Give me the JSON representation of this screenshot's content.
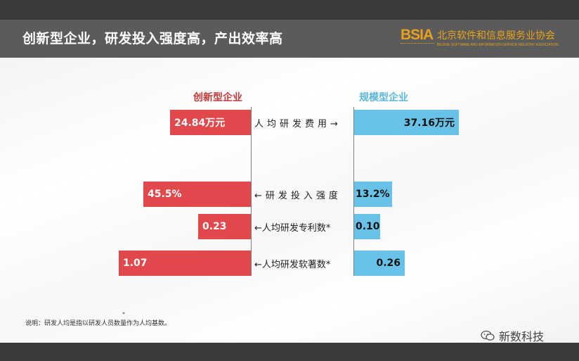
{
  "header": {
    "title": "创新型企业，研发投入强度高，产出效率高",
    "logo_mark": "BSIA",
    "logo_cn": "北京软件和信息服务业协会",
    "logo_en": "BEIJING SOFTWARE AND INFORMATION SERVICE INDUSTRY ASSOCIATION"
  },
  "chart_data": {
    "type": "bar",
    "orientation": "horizontal-butterfly",
    "series": [
      {
        "name": "创新型企业",
        "values": [
          24.84,
          45.5,
          0.23,
          1.07
        ],
        "labels": [
          "24.84万元",
          "45.5%",
          "0.23",
          "1.07"
        ],
        "color": "#e0484b"
      },
      {
        "name": "规模型企业",
        "values": [
          37.16,
          13.2,
          0.1,
          0.26
        ],
        "labels": [
          "37.16万元",
          "13.2%",
          "0.10",
          "0.26"
        ],
        "color": "#68c2e8"
      }
    ],
    "categories": [
      "人均研发费用→",
      "←研发投入强度",
      "←人均研发专利数*",
      "←人均研发软著数*"
    ],
    "note": "说明：研发人均是指以研发人员数量作为人均基数。"
  },
  "footnote_mark": "*",
  "watermark": "新数科技"
}
